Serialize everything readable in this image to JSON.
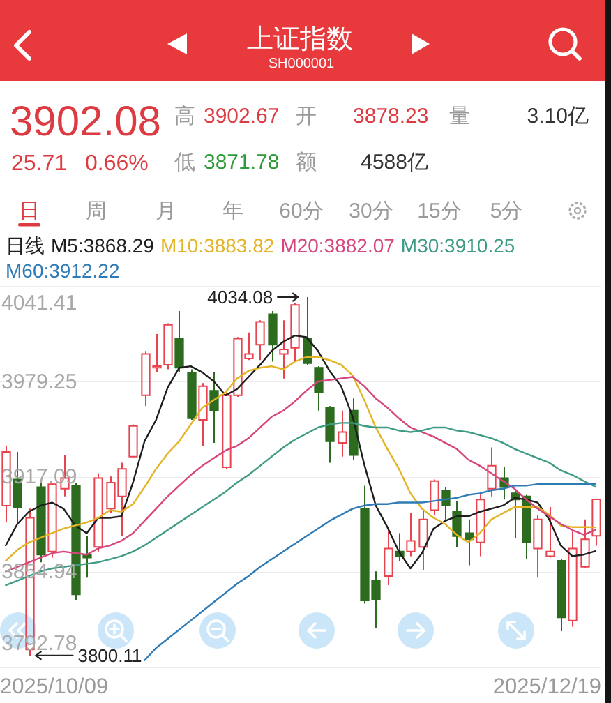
{
  "chart_data": {
    "type": "candlestick",
    "title": "上证指数",
    "subtitle": "SH000001",
    "categories": [
      null,
      null,
      null,
      null,
      null,
      null,
      null,
      null,
      null,
      null,
      null,
      null,
      null,
      null,
      null,
      null,
      null,
      null,
      null,
      null,
      null,
      null,
      null,
      null,
      null,
      null,
      null,
      null,
      null,
      null,
      null,
      null,
      null,
      null,
      null,
      null,
      null,
      null,
      null,
      null,
      null,
      null,
      null,
      null,
      null,
      null,
      null,
      null,
      null,
      null,
      null,
      null
    ],
    "ohlc": [
      [
        3898,
        3937,
        3887,
        3933
      ],
      [
        3915,
        3933,
        3887,
        3897
      ],
      [
        3804,
        3896,
        3800.11,
        3890
      ],
      [
        3910,
        3913,
        3861,
        3866
      ],
      [
        3868,
        3913,
        3864,
        3912
      ],
      [
        3909,
        3931,
        3904,
        3916
      ],
      [
        3911,
        3913,
        3836,
        3840
      ],
      [
        3866,
        3878,
        3851,
        3864
      ],
      [
        3871,
        3919,
        3868,
        3916
      ],
      [
        3896,
        3917,
        3893,
        3913
      ],
      [
        3904,
        3926,
        3878,
        3922
      ],
      [
        3930,
        3951,
        3929,
        3950
      ],
      [
        3970,
        3999,
        3963,
        3997
      ],
      [
        3988,
        4010,
        3985,
        3989
      ],
      [
        3990,
        4017,
        3987,
        4016
      ],
      [
        4007,
        4025,
        3985,
        3988
      ],
      [
        3985,
        3987,
        3954,
        3955
      ],
      [
        3954,
        3978,
        3937,
        3976
      ],
      [
        3973,
        3985,
        3939,
        3960
      ],
      [
        3923,
        3972,
        3922,
        3970
      ],
      [
        3970,
        4008,
        3969,
        4007
      ],
      [
        3994,
        4011,
        3993,
        3997
      ],
      [
        4003,
        4019,
        3993,
        4018
      ],
      [
        4023,
        4025,
        3992,
        4003
      ],
      [
        3997,
        4019,
        3981,
        4000
      ],
      [
        4001,
        4030,
        3992,
        4029
      ],
      [
        4007,
        4034.08,
        3990,
        3991
      ],
      [
        3988,
        3989,
        3960,
        3972
      ],
      [
        3962,
        3963,
        3926,
        3940
      ],
      [
        3939,
        3960,
        3930,
        3946
      ],
      [
        3960,
        3968,
        3928,
        3931
      ],
      [
        3896,
        3911,
        3834,
        3836
      ],
      [
        3849,
        3855,
        3818,
        3837
      ],
      [
        3852,
        3883,
        3846,
        3870
      ],
      [
        3868,
        3880,
        3862,
        3865
      ],
      [
        3868,
        3893,
        3865,
        3875
      ],
      [
        3871,
        3895,
        3856,
        3889
      ],
      [
        3895,
        3915,
        3892,
        3914
      ],
      [
        3908,
        3910,
        3889,
        3898
      ],
      [
        3894,
        3901,
        3871,
        3878
      ],
      [
        3880,
        3889,
        3859,
        3876
      ],
      [
        3874,
        3906,
        3865,
        3902
      ],
      [
        3909,
        3936,
        3904,
        3924
      ],
      [
        3916,
        3923,
        3902,
        3910
      ],
      [
        3906,
        3908,
        3877,
        3902
      ],
      [
        3904,
        3905,
        3863,
        3874
      ],
      [
        3870,
        3892,
        3851,
        3889
      ],
      [
        3865,
        3897,
        3864,
        3868
      ],
      [
        3862,
        3863,
        3816,
        3825
      ],
      [
        3823,
        3881,
        3819,
        3870
      ],
      [
        3858,
        3889,
        3857,
        3876
      ],
      [
        3878.23,
        3902.67,
        3871.78,
        3902.08
      ]
    ],
    "colors": [
      "#e8434f",
      "#2d6b1f",
      "#e8434f",
      "#2d6b1f",
      "#e8434f",
      "#e8434f",
      "#2d6b1f",
      "#2d6b1f",
      "#e8434f",
      "#e8434f",
      "#e8434f",
      "#e8434f",
      "#e8434f",
      "#e8434f",
      "#e8434f",
      "#2d6b1f",
      "#2d6b1f",
      "#e8434f",
      "#2d6b1f",
      "#e8434f",
      "#e8434f",
      "#e8434f",
      "#e8434f",
      "#2d6b1f",
      "#e8434f",
      "#e8434f",
      "#2d6b1f",
      "#2d6b1f",
      "#2d6b1f",
      "#e8434f",
      "#2d6b1f",
      "#2d6b1f",
      "#2d6b1f",
      "#e8434f",
      "#2d6b1f",
      "#e8434f",
      "#e8434f",
      "#e8434f",
      "#2d6b1f",
      "#2d6b1f",
      "#2d6b1f",
      "#e8434f",
      "#e8434f",
      "#2d6b1f",
      "#2d6b1f",
      "#2d6b1f",
      "#e8434f",
      "#e8434f",
      "#2d6b1f",
      "#e8434f",
      "#e8434f",
      "#e8434f"
    ],
    "series": [
      {
        "type": "line",
        "name": "M5:3868.29",
        "color": "#1e1e1e",
        "values": [
          3872,
          3886,
          3894,
          3898,
          3900,
          3896,
          3885,
          3880,
          3890,
          3890,
          3891,
          3913,
          3940,
          3954,
          3975,
          3988,
          3989,
          3985,
          3979,
          3970,
          3974,
          3982,
          3990,
          3999,
          4005,
          4009,
          4008,
          3999,
          3986,
          3976,
          3956,
          3925,
          3898,
          3884,
          3868,
          3857,
          3867,
          3883,
          3888,
          3891,
          3891,
          3894,
          3896,
          3898,
          3903,
          3902,
          3900,
          3889,
          3872,
          3865,
          3866,
          3868.29
        ]
      },
      {
        "type": "line",
        "name": "M10:3883.82",
        "color": "#e3b324",
        "values": [
          3862,
          3869,
          3874,
          3877,
          3880,
          3883,
          3885,
          3887,
          3890,
          3895,
          3894,
          3899,
          3910,
          3922,
          3932,
          3940,
          3951,
          3962,
          3967,
          3972,
          3981,
          3986,
          3988,
          3989,
          3987,
          3992,
          3995,
          3995,
          3993,
          3990,
          3983,
          3967,
          3949,
          3935,
          3922,
          3906,
          3896,
          3890,
          3886,
          3879,
          3874,
          3880,
          3889,
          3893,
          3897,
          3897,
          3897,
          3892,
          3885,
          3884,
          3884,
          3883.82
        ]
      },
      {
        "type": "line",
        "name": "M20:3882.07",
        "color": "#d6457d",
        "values": [
          3855,
          3858,
          3861,
          3864,
          3867,
          3868,
          3867,
          3866,
          3870,
          3872,
          3875,
          3880,
          3888,
          3896,
          3904,
          3911,
          3918,
          3924,
          3929,
          3934,
          3937,
          3942,
          3949,
          3956,
          3960,
          3966,
          3973,
          3979,
          3980,
          3981,
          3982,
          3976,
          3968,
          3962,
          3955,
          3949,
          3946,
          3943,
          3939,
          3935,
          3928,
          3924,
          3919,
          3914,
          3909,
          3902,
          3896,
          3891,
          3886,
          3882,
          3879,
          3882.07
        ]
      },
      {
        "type": "line",
        "name": "M30:3910.25",
        "color": "#3d9b86",
        "values": [
          3846,
          3849,
          3852,
          3855,
          3857,
          3858,
          3859,
          3860,
          3861,
          3863,
          3865,
          3868,
          3872,
          3877,
          3882,
          3887,
          3892,
          3897,
          3902,
          3907,
          3913,
          3918,
          3924,
          3930,
          3936,
          3941,
          3945,
          3949,
          3951,
          3952,
          3952,
          3950,
          3949,
          3949,
          3947,
          3946,
          3947,
          3949,
          3949,
          3947,
          3946,
          3944,
          3942,
          3939,
          3935,
          3932,
          3929,
          3926,
          3921,
          3918,
          3914,
          3910.25
        ]
      },
      {
        "type": "line",
        "name": "M60:3912.22",
        "color": "#2f7bb5",
        "values": [
          null,
          null,
          null,
          null,
          null,
          null,
          null,
          null,
          null,
          null,
          null,
          null,
          3797,
          3805,
          3811,
          3817,
          3823,
          3829,
          3835,
          3841,
          3847,
          3852,
          3858,
          3863,
          3868,
          3873,
          3878,
          3883,
          3888,
          3892,
          3896,
          3898,
          3899,
          3899,
          3900,
          3900,
          3900,
          3901,
          3902,
          3903,
          3905,
          3906,
          3908,
          3909,
          3911,
          3911,
          3912,
          3912,
          3912,
          3912,
          3912,
          3912.22
        ]
      }
    ],
    "ylim": [
      3792.78,
      4041.41
    ],
    "yticks": [
      4041.41,
      3979.25,
      3917.09,
      3854.94,
      3792.78
    ],
    "grid": "y",
    "legend": "top",
    "legend_title": "日线",
    "annotations": [
      "3902.08",
      "25.71",
      "0.66%",
      "高",
      "3902.67",
      "开",
      "3878.23",
      "量",
      "3.10亿",
      "低",
      "3871.78",
      "额",
      "4588亿",
      "日",
      "周",
      "月",
      "年",
      "60分",
      "30分",
      "15分",
      "5分",
      "2025/10/09",
      "2025/12/19",
      "4034.08",
      "3800.11"
    ]
  }
}
